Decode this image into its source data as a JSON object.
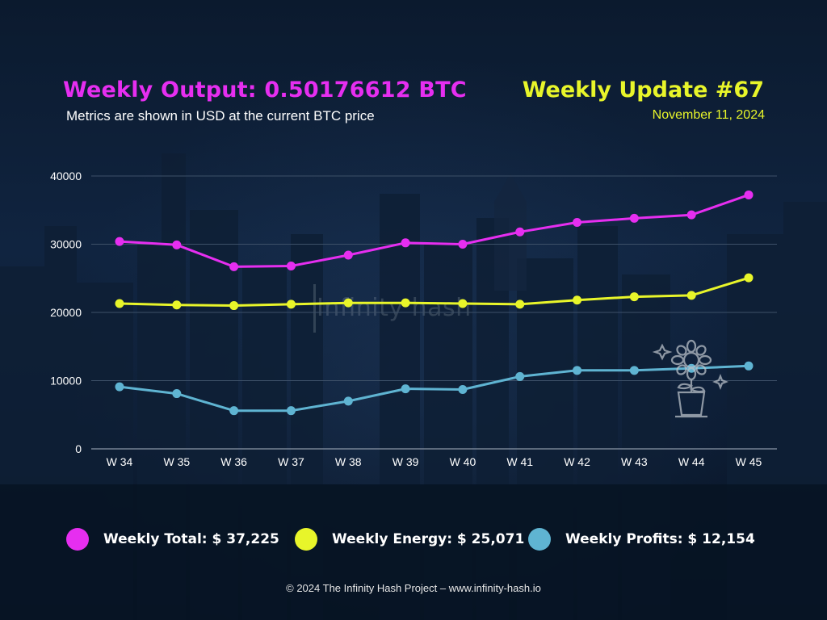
{
  "header": {
    "output_title": "Weekly Output: 0.50176612 BTC",
    "subtitle": "Metrics are shown in USD at the current BTC price",
    "update_title": "Weekly Update #67",
    "date": "November 11, 2024"
  },
  "watermark": "Infinity hash",
  "legend": [
    {
      "label": "Weekly Total: $ 37,225",
      "color": "#e62ef0"
    },
    {
      "label": "Weekly Energy: $ 25,071",
      "color": "#e8f52a"
    },
    {
      "label": "Weekly Profits: $ 12,154",
      "color": "#5fb4d2"
    }
  ],
  "footer": "© 2024 The Infinity Hash Project – www.infinity-hash.io",
  "icons": {
    "plant": "bitcoin-plant-icon"
  },
  "chart_data": {
    "type": "line",
    "categories": [
      "W 34",
      "W 35",
      "W 36",
      "W 37",
      "W 38",
      "W 39",
      "W 40",
      "W 41",
      "W 42",
      "W 43",
      "W 44",
      "W 45"
    ],
    "ylim": [
      0,
      40000
    ],
    "yticks": [
      0,
      10000,
      20000,
      30000,
      40000
    ],
    "grid": true,
    "series": [
      {
        "name": "Weekly Total",
        "color": "#e62ef0",
        "values": [
          30400,
          29900,
          26700,
          26800,
          28400,
          30200,
          30000,
          31800,
          33200,
          33800,
          34300,
          37225
        ]
      },
      {
        "name": "Weekly Energy",
        "color": "#e8f52a",
        "values": [
          21300,
          21100,
          21000,
          21200,
          21400,
          21400,
          21300,
          21200,
          21800,
          22300,
          22500,
          25071
        ]
      },
      {
        "name": "Weekly Profits",
        "color": "#5fb4d2",
        "values": [
          9100,
          8100,
          5600,
          5600,
          7000,
          8800,
          8700,
          10600,
          11500,
          11500,
          11800,
          12154
        ]
      }
    ]
  }
}
